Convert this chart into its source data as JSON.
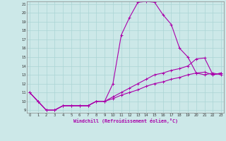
{
  "xlabel": "Windchill (Refroidissement éolien,°C)",
  "bg_color": "#cce8e8",
  "line_color": "#aa00aa",
  "grid_color": "#aad4d4",
  "xmin": 0,
  "xmax": 23,
  "ymin": 9,
  "ymax": 21,
  "yticks": [
    9,
    10,
    11,
    12,
    13,
    14,
    15,
    16,
    17,
    18,
    19,
    20,
    21
  ],
  "xticks": [
    0,
    1,
    2,
    3,
    4,
    5,
    6,
    7,
    8,
    9,
    10,
    11,
    12,
    13,
    14,
    15,
    16,
    17,
    18,
    19,
    20,
    21,
    22,
    23
  ],
  "series": [
    {
      "x": [
        0,
        1,
        2,
        3,
        4,
        5,
        6,
        7,
        8,
        9,
        10,
        11,
        12,
        13,
        14,
        15,
        16,
        17,
        18,
        19,
        20,
        21,
        22,
        23
      ],
      "y": [
        11,
        10,
        9,
        9,
        9.5,
        9.5,
        9.5,
        9.5,
        10,
        10,
        12,
        17.5,
        19.5,
        21.2,
        21.3,
        21.2,
        19.8,
        18.7,
        16,
        15,
        13.2,
        13,
        13.2,
        13
      ]
    },
    {
      "x": [
        0,
        1,
        2,
        3,
        4,
        5,
        6,
        7,
        8,
        9,
        10,
        11,
        12,
        13,
        14,
        15,
        16,
        17,
        18,
        19,
        20,
        21,
        22,
        23
      ],
      "y": [
        11,
        10,
        9,
        9,
        9.5,
        9.5,
        9.5,
        9.5,
        10,
        10,
        10.5,
        11,
        11.5,
        12,
        12.5,
        13,
        13.2,
        13.5,
        13.7,
        14.0,
        14.8,
        14.9,
        13,
        13.2
      ]
    },
    {
      "x": [
        0,
        1,
        2,
        3,
        4,
        5,
        6,
        7,
        8,
        9,
        10,
        11,
        12,
        13,
        14,
        15,
        16,
        17,
        18,
        19,
        20,
        21,
        22,
        23
      ],
      "y": [
        11,
        10,
        9,
        9,
        9.5,
        9.5,
        9.5,
        9.5,
        10,
        10,
        10.3,
        10.7,
        11.0,
        11.3,
        11.7,
        12.0,
        12.2,
        12.5,
        12.7,
        13.0,
        13.2,
        13.3,
        13.0,
        13.2
      ]
    }
  ]
}
